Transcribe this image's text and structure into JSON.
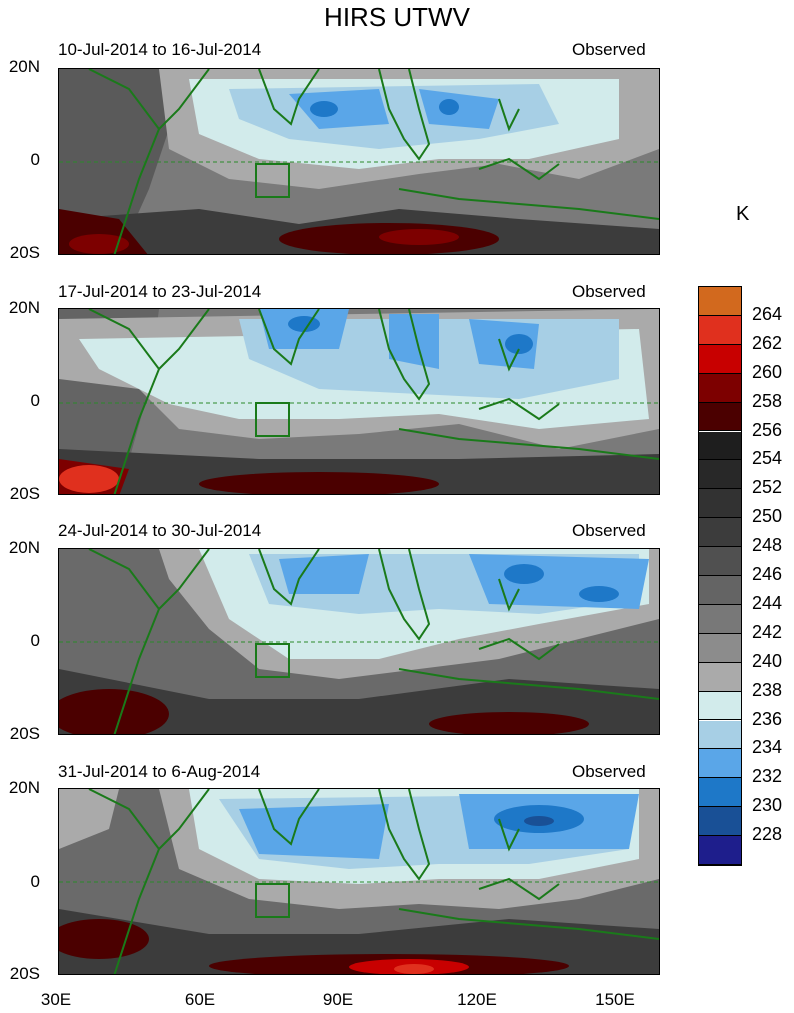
{
  "title": "HIRS UTWV",
  "panels": [
    {
      "dates": "10-Jul-2014 to 16-Jul-2014",
      "tag": "Observed"
    },
    {
      "dates": "17-Jul-2014 to 23-Jul-2014",
      "tag": "Observed"
    },
    {
      "dates": "24-Jul-2014 to 30-Jul-2014",
      "tag": "Observed"
    },
    {
      "dates": "31-Jul-2014 to 6-Aug-2014",
      "tag": "Observed"
    }
  ],
  "y_labels": [
    "20N",
    "0",
    "20S"
  ],
  "x_labels": [
    "30E",
    "60E",
    "90E",
    "120E",
    "150E"
  ],
  "unit": "K",
  "colorbar": {
    "labels": [
      "264",
      "262",
      "260",
      "258",
      "256",
      "254",
      "252",
      "250",
      "248",
      "246",
      "244",
      "242",
      "240",
      "238",
      "236",
      "234",
      "232",
      "230",
      "228"
    ],
    "colors": [
      "#d2691e",
      "#e0301e",
      "#c80000",
      "#7d0000",
      "#4b0000",
      "#1e1e1e",
      "#282828",
      "#323232",
      "#3c3c3c",
      "#505050",
      "#646464",
      "#787878",
      "#8c8c8c",
      "#aaaaaa",
      "#d2ebeb",
      "#a7cfe5",
      "#5aa6e8",
      "#1e78c8",
      "#195096",
      "#1e1e8c"
    ]
  }
}
